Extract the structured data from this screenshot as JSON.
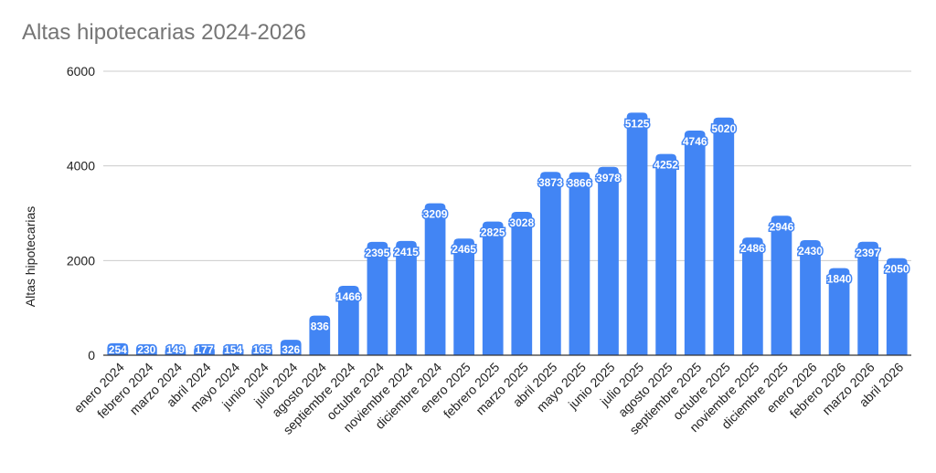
{
  "chart_data": {
    "type": "bar",
    "title": "Altas hipotecarias 2024-2026",
    "xlabel": "",
    "ylabel": "Altas hipotecarias",
    "ylim": [
      0,
      6000
    ],
    "yticks": [
      "0",
      "2000",
      "4000",
      "6000"
    ],
    "grid": true,
    "legend": "none",
    "bar_color": "#4285F4",
    "categories": [
      "enero 2024",
      "febrero 2024",
      "marzo 2024",
      "abril 2024",
      "mayo 2024",
      "junio 2024",
      "julio 2024",
      "agosto 2024",
      "septiembre 2024",
      "octubre 2024",
      "noviembre 2024",
      "diciembre 2024",
      "enero 2025",
      "febrero 2025",
      "marzo 2025",
      "abril 2025",
      "mayo 2025",
      "junio 2025",
      "julio 2025",
      "agosto 2025",
      "septiembre 2025",
      "octubre 2025",
      "noviembre 2025",
      "diciembre 2025",
      "enero 2026",
      "febrero 2026",
      "marzo 2026",
      "abril 2026"
    ],
    "values": [
      254,
      230,
      149,
      177,
      154,
      165,
      326,
      836,
      1466,
      2395,
      2415,
      3209,
      2465,
      2825,
      3028,
      3873,
      3866,
      3978,
      5125,
      4252,
      4746,
      5020,
      2486,
      2946,
      2430,
      1840,
      2397,
      2050
    ]
  }
}
